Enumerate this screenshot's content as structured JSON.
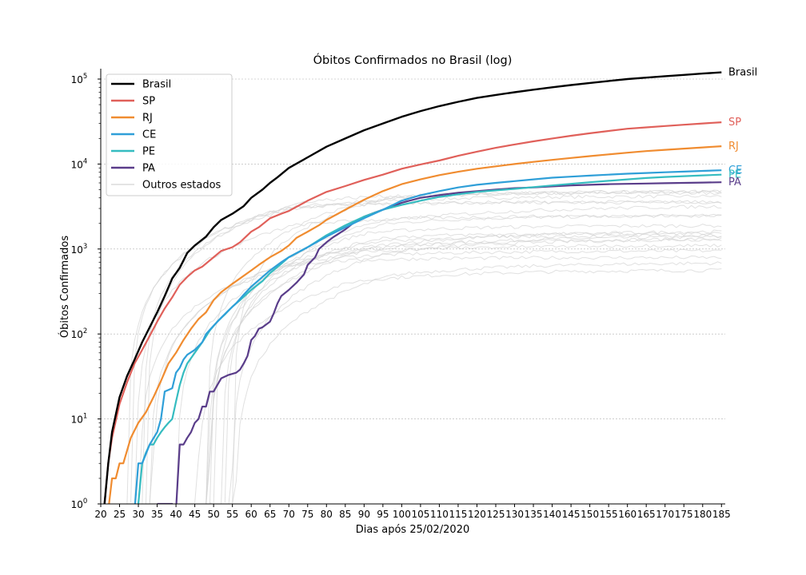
{
  "chart_data": {
    "type": "line",
    "title": "Óbitos Confirmados no Brasil (log)",
    "xlabel": "Dias após 25/02/2020",
    "ylabel": "Óbitos Confirmados",
    "yscale": "log",
    "xlim": [
      20,
      186
    ],
    "ylim": [
      1,
      130000
    ],
    "grid": "horizontal",
    "legend_position": "top-left",
    "x_ticks": [
      20,
      25,
      30,
      35,
      40,
      45,
      50,
      55,
      60,
      65,
      70,
      75,
      80,
      85,
      90,
      95,
      100,
      105,
      110,
      115,
      120,
      125,
      130,
      135,
      140,
      145,
      150,
      155,
      160,
      165,
      170,
      175,
      180,
      185
    ],
    "y_ticks": [
      {
        "value": 1,
        "base": "10",
        "exp": "0"
      },
      {
        "value": 10,
        "base": "10",
        "exp": "1"
      },
      {
        "value": 100,
        "base": "10",
        "exp": "2"
      },
      {
        "value": 1000,
        "base": "10",
        "exp": "3"
      },
      {
        "value": 10000,
        "base": "10",
        "exp": "4"
      },
      {
        "value": 100000,
        "base": "10",
        "exp": "5"
      }
    ],
    "series": [
      {
        "name": "Brasil",
        "color": "#000000",
        "end_label": "Brasil",
        "x": [
          21,
          22,
          23,
          25,
          27,
          29,
          31,
          33,
          35,
          37,
          39,
          41,
          43,
          45,
          48,
          50,
          52,
          55,
          58,
          60,
          63,
          65,
          67,
          70,
          75,
          80,
          85,
          90,
          95,
          100,
          105,
          110,
          115,
          120,
          125,
          130,
          135,
          140,
          145,
          150,
          155,
          160,
          165,
          170,
          175,
          180,
          185
        ],
        "y": [
          1,
          3,
          7,
          18,
          32,
          50,
          80,
          120,
          180,
          280,
          450,
          600,
          900,
          1100,
          1400,
          1800,
          2200,
          2600,
          3200,
          4000,
          5000,
          6000,
          7000,
          9000,
          12000,
          16000,
          20000,
          25000,
          30000,
          36000,
          42000,
          48000,
          54000,
          60000,
          65000,
          70000,
          75000,
          80000,
          85000,
          90000,
          95000,
          100000,
          104000,
          108000,
          112000,
          116000,
          120000
        ]
      },
      {
        "name": "SP",
        "color": "#e0605a",
        "end_label": "SP",
        "x": [
          21,
          22,
          23,
          25,
          27,
          29,
          31,
          33,
          35,
          37,
          39,
          41,
          43,
          45,
          47,
          50,
          52,
          55,
          57,
          60,
          62,
          65,
          68,
          70,
          75,
          80,
          85,
          90,
          95,
          100,
          105,
          110,
          115,
          120,
          125,
          130,
          135,
          140,
          145,
          150,
          155,
          160,
          165,
          170,
          175,
          180,
          185
        ],
        "y": [
          1,
          3,
          6,
          15,
          27,
          45,
          65,
          95,
          140,
          200,
          270,
          380,
          470,
          560,
          620,
          800,
          950,
          1050,
          1200,
          1600,
          1800,
          2300,
          2600,
          2800,
          3700,
          4700,
          5500,
          6500,
          7500,
          8800,
          9900,
          11000,
          12500,
          14000,
          15500,
          17000,
          18500,
          20000,
          21500,
          23000,
          24500,
          26000,
          27000,
          28000,
          29000,
          30000,
          31000
        ]
      },
      {
        "name": "RJ",
        "color": "#f08c30",
        "end_label": "RJ",
        "x": [
          21,
          22,
          23,
          24,
          25,
          26,
          28,
          30,
          32,
          34,
          36,
          38,
          40,
          42,
          44,
          46,
          48,
          50,
          52,
          55,
          57,
          60,
          62,
          65,
          68,
          70,
          72,
          75,
          78,
          80,
          85,
          90,
          95,
          100,
          105,
          110,
          115,
          120,
          125,
          130,
          135,
          140,
          145,
          150,
          155,
          160,
          165,
          170,
          175,
          180,
          185
        ],
        "y": [
          0.6,
          0.9,
          2,
          2,
          3,
          3,
          6,
          9,
          12,
          18,
          28,
          45,
          60,
          85,
          115,
          150,
          180,
          250,
          310,
          390,
          450,
          560,
          650,
          800,
          950,
          1100,
          1350,
          1600,
          1900,
          2200,
          2900,
          3800,
          4800,
          5800,
          6600,
          7400,
          8100,
          8800,
          9400,
          10000,
          10600,
          11200,
          11800,
          12400,
          13000,
          13600,
          14200,
          14700,
          15200,
          15700,
          16200
        ]
      },
      {
        "name": "CE",
        "color": "#2f9fd8",
        "end_label": "CE",
        "x": [
          29,
          30,
          31,
          33,
          35,
          36,
          37,
          38,
          39,
          40,
          41,
          42,
          43,
          45,
          47,
          48,
          50,
          52,
          54,
          56,
          58,
          60,
          62,
          65,
          68,
          70,
          75,
          80,
          85,
          90,
          95,
          100,
          105,
          110,
          115,
          120,
          125,
          130,
          135,
          140,
          145,
          150,
          155,
          160,
          165,
          170,
          175,
          180,
          185
        ],
        "y": [
          0.6,
          3,
          3,
          5,
          7,
          10,
          21,
          22,
          23,
          35,
          40,
          50,
          57,
          65,
          80,
          100,
          125,
          155,
          190,
          230,
          290,
          360,
          430,
          560,
          700,
          800,
          1050,
          1400,
          1800,
          2300,
          2900,
          3700,
          4300,
          4800,
          5300,
          5700,
          6000,
          6300,
          6600,
          6900,
          7100,
          7300,
          7500,
          7700,
          7850,
          8000,
          8150,
          8300,
          8450
        ]
      },
      {
        "name": "PE",
        "color": "#35bcc0",
        "end_label": "PE",
        "x": [
          30,
          31,
          32,
          33,
          34,
          35,
          36,
          37,
          38,
          39,
          40,
          41,
          42,
          43,
          45,
          47,
          49,
          51,
          53,
          55,
          57,
          60,
          63,
          65,
          68,
          70,
          75,
          80,
          85,
          90,
          95,
          100,
          105,
          110,
          115,
          120,
          125,
          130,
          135,
          140,
          145,
          150,
          155,
          160,
          165,
          170,
          175,
          180,
          185
        ],
        "y": [
          1,
          3,
          4,
          5,
          5,
          6,
          7,
          8,
          9,
          10,
          16,
          25,
          35,
          45,
          60,
          80,
          110,
          140,
          170,
          210,
          250,
          330,
          420,
          520,
          670,
          800,
          1050,
          1450,
          1900,
          2400,
          2900,
          3300,
          3700,
          4100,
          4400,
          4700,
          4900,
          5100,
          5350,
          5600,
          5850,
          6100,
          6350,
          6600,
          6850,
          7050,
          7200,
          7350,
          7500
        ]
      },
      {
        "name": "PA",
        "color": "#5a3d8a",
        "end_label": "PA",
        "x": [
          35,
          37,
          39,
          40,
          41,
          42,
          43,
          44,
          45,
          46,
          47,
          48,
          49,
          50,
          52,
          54,
          56,
          57,
          58,
          59,
          60,
          61,
          62,
          63,
          65,
          66,
          67,
          68,
          70,
          72,
          74,
          75,
          77,
          78,
          80,
          82,
          85,
          87,
          90,
          93,
          95,
          97,
          100,
          105,
          110,
          115,
          120,
          125,
          130,
          135,
          140,
          145,
          150,
          155,
          160,
          165,
          170,
          175,
          180,
          185
        ],
        "y": [
          1,
          1,
          1,
          0.6,
          5,
          5,
          6,
          7,
          9,
          10,
          14,
          14,
          21,
          21,
          30,
          33,
          35,
          38,
          45,
          55,
          85,
          95,
          115,
          120,
          140,
          175,
          230,
          280,
          330,
          400,
          500,
          650,
          800,
          1000,
          1200,
          1400,
          1700,
          2000,
          2400,
          2700,
          2900,
          3100,
          3500,
          4000,
          4300,
          4600,
          4800,
          5000,
          5200,
          5300,
          5450,
          5600,
          5700,
          5800,
          5850,
          5900,
          5950,
          6000,
          6050,
          6100
        ]
      }
    ],
    "other_states_label": "Outros estados",
    "other_states_color": "#d3d3d3"
  }
}
